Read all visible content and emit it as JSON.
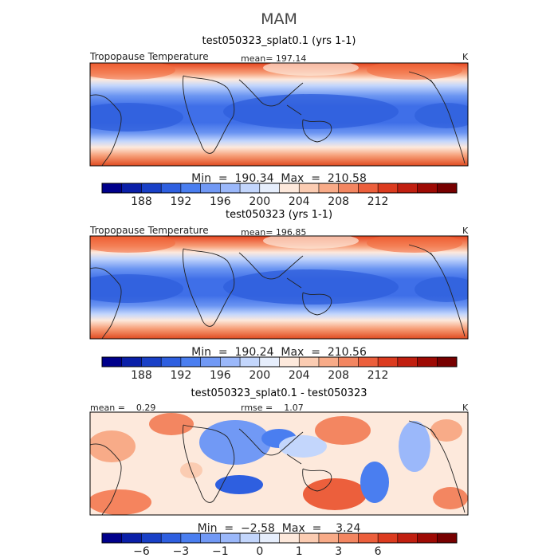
{
  "figure_title": "MAM",
  "unit": "K",
  "panels": [
    {
      "id": "experiment",
      "title": "test050323_splat0.1 (yrs 1-1)",
      "left_label": "Tropopause Temperature",
      "center_label": "mean=  197.14",
      "minmax_label": "Min  =  190.34  Max  =  210.58",
      "field_type": "absolute",
      "colorbar_colors": [
        "#00008b",
        "#0a1fa8",
        "#1940c7",
        "#2e5fe0",
        "#4a7ef0",
        "#7199f5",
        "#9bb8fa",
        "#c3d6fc",
        "#e6eefc",
        "#fde9dc",
        "#fbccb2",
        "#f8ab88",
        "#f38661",
        "#ec5f3c",
        "#dc3b1f",
        "#c11f10",
        "#9e0a04",
        "#770000"
      ],
      "colorbar_ticks": [
        "188",
        "192",
        "196",
        "200",
        "204",
        "208",
        "212"
      ]
    },
    {
      "id": "control",
      "title": "test050323 (yrs 1-1)",
      "left_label": "Tropopause Temperature",
      "center_label": "mean=  196.85",
      "minmax_label": "Min  =  190.24  Max  =  210.56",
      "field_type": "absolute",
      "colorbar_colors": [
        "#00008b",
        "#0a1fa8",
        "#1940c7",
        "#2e5fe0",
        "#4a7ef0",
        "#7199f5",
        "#9bb8fa",
        "#c3d6fc",
        "#e6eefc",
        "#fde9dc",
        "#fbccb2",
        "#f8ab88",
        "#f38661",
        "#ec5f3c",
        "#dc3b1f",
        "#c11f10",
        "#9e0a04",
        "#770000"
      ],
      "colorbar_ticks": [
        "188",
        "192",
        "196",
        "200",
        "204",
        "208",
        "212"
      ]
    },
    {
      "id": "difference",
      "title": "test050323_splat0.1 - test050323",
      "left_label": "mean =    0.29",
      "center_label": "rmse =    1.07",
      "minmax_label": "Min  =  −2.58  Max  =    3.24",
      "field_type": "difference",
      "colorbar_colors": [
        "#00008b",
        "#0a1fa8",
        "#1940c7",
        "#2e5fe0",
        "#4a7ef0",
        "#7199f5",
        "#9bb8fa",
        "#c3d6fc",
        "#e6eefc",
        "#fde9dc",
        "#fbccb2",
        "#f8ab88",
        "#f38661",
        "#ec5f3c",
        "#dc3b1f",
        "#c11f10",
        "#9e0a04",
        "#770000"
      ],
      "colorbar_ticks": [
        "−6",
        "−3",
        "−1",
        "0",
        "1",
        "3",
        "6"
      ]
    }
  ]
}
